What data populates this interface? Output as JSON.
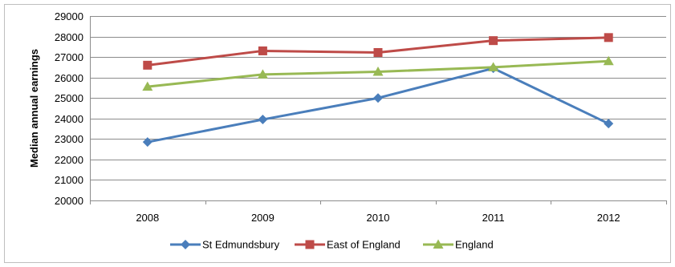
{
  "chart_data": {
    "type": "line",
    "title": "",
    "xlabel": "",
    "ylabel": "Median annual earnings",
    "categories": [
      "2008",
      "2009",
      "2010",
      "2011",
      "2012"
    ],
    "ylim": [
      20000,
      29000
    ],
    "yticks": [
      "20000",
      "21000",
      "22000",
      "23000",
      "24000",
      "25000",
      "26000",
      "27000",
      "28000",
      "29000"
    ],
    "grid": true,
    "legend_position": "bottom",
    "series": [
      {
        "name": "St Edmundsbury",
        "values": [
          22850,
          23950,
          25000,
          26450,
          23750
        ],
        "color": "#4a7ebb",
        "marker": "diamond"
      },
      {
        "name": "East of England",
        "values": [
          26600,
          27300,
          27220,
          27800,
          27950
        ],
        "color": "#be4b48",
        "marker": "square"
      },
      {
        "name": "England",
        "values": [
          25550,
          26150,
          26280,
          26500,
          26800
        ],
        "color": "#98b954",
        "marker": "triangle"
      }
    ]
  }
}
